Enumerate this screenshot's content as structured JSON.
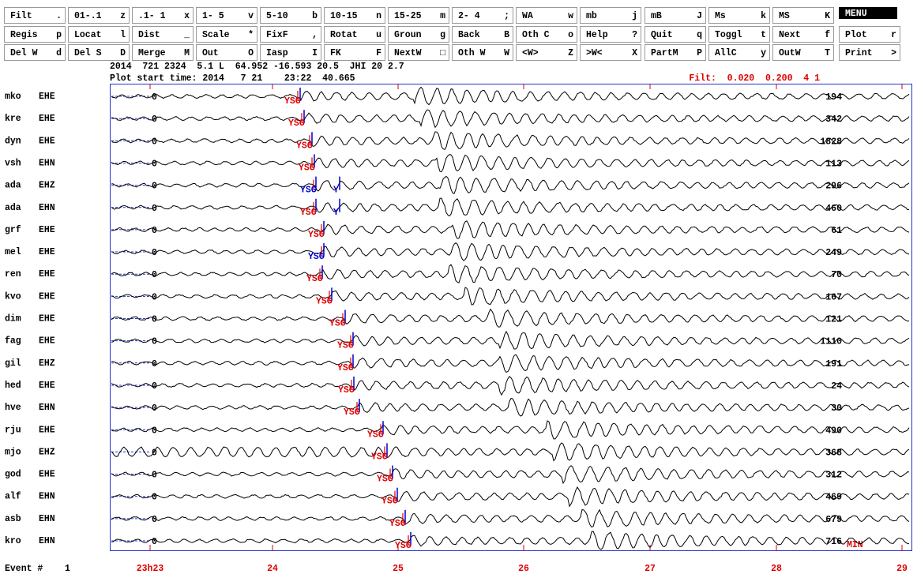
{
  "menu": {
    "rows": [
      [
        {
          "label": "Filt",
          "key": "."
        },
        {
          "label": "01-.1",
          "key": "z"
        },
        {
          "label": ".1- 1",
          "key": "x"
        },
        {
          "label": "1- 5",
          "key": "v"
        },
        {
          "label": "5-10",
          "key": "b"
        },
        {
          "label": "10-15",
          "key": "n"
        },
        {
          "label": "15-25",
          "key": "m"
        },
        {
          "label": "2- 4",
          "key": ";"
        },
        {
          "label": "WA",
          "key": "w"
        },
        {
          "label": "mb",
          "key": "j"
        },
        {
          "label": "mB",
          "key": "J"
        },
        {
          "label": "Ms",
          "key": "k"
        },
        {
          "label": "MS",
          "key": "K"
        },
        {
          "label": "MENU"
        }
      ],
      [
        {
          "label": "Regis",
          "key": "p"
        },
        {
          "label": "Locat",
          "key": "l"
        },
        {
          "label": "Dist",
          "key": "_"
        },
        {
          "label": "Scale",
          "key": "*"
        },
        {
          "label": "FixF",
          "key": ","
        },
        {
          "label": "Rotat",
          "key": "u"
        },
        {
          "label": "Groun",
          "key": "g"
        },
        {
          "label": "Back",
          "key": "B"
        },
        {
          "label": "Oth C",
          "key": "o"
        },
        {
          "label": "Help",
          "key": "?"
        },
        {
          "label": "Quit",
          "key": "q"
        },
        {
          "label": "Toggl",
          "key": "t"
        },
        {
          "label": "Next",
          "key": "f"
        },
        {
          "label": "Plot",
          "key": "r"
        }
      ],
      [
        {
          "label": "Del W",
          "key": "d"
        },
        {
          "label": "Del S",
          "key": "D"
        },
        {
          "label": "Merge",
          "key": "M"
        },
        {
          "label": "Out",
          "key": "O"
        },
        {
          "label": "Iasp",
          "key": "I"
        },
        {
          "label": "FK",
          "key": "F"
        },
        {
          "label": "NextW",
          "key": "□"
        },
        {
          "label": "Oth W",
          "key": "W"
        },
        {
          "label": "<W>",
          "key": "Z"
        },
        {
          "label": ">W<",
          "key": "X"
        },
        {
          "label": "PartM",
          "key": "P"
        },
        {
          "label": "AllC",
          "key": "y"
        },
        {
          "label": "OutW",
          "key": "T"
        },
        {
          "label": "Print",
          "key": ">"
        }
      ]
    ]
  },
  "header": {
    "event_line": "2014  721 2324  5.1 L  64.952 -16.593 20.5  JHI 20 2.7",
    "start_line": "Plot start time: 2014   7 21    23:22  40.665",
    "filter": "Filt:  0.020  0.200  4 1"
  },
  "traces": [
    {
      "station": "mko",
      "component": "EHE",
      "zero": "0",
      "max": "194",
      "picks": [
        "YSG"
      ]
    },
    {
      "station": "kre",
      "component": "EHE",
      "zero": "0",
      "max": "342",
      "picks": [
        "YSG"
      ]
    },
    {
      "station": "dyn",
      "component": "EHE",
      "zero": "0",
      "max": "1828",
      "picks": [
        "YSG"
      ]
    },
    {
      "station": "vsh",
      "component": "EHN",
      "zero": "0",
      "max": "113",
      "picks": [
        "YSG"
      ]
    },
    {
      "station": "ada",
      "component": "EHZ",
      "zero": "0",
      "max": "296",
      "picks": [
        "YSG",
        "Y"
      ]
    },
    {
      "station": "ada",
      "component": "EHN",
      "zero": "0",
      "max": "460",
      "picks": [
        "YSG",
        "Y"
      ]
    },
    {
      "station": "grf",
      "component": "EHE",
      "zero": "0",
      "max": "61",
      "picks": [
        "YSG"
      ]
    },
    {
      "station": "mel",
      "component": "EHE",
      "zero": "0",
      "max": "249",
      "picks": [
        "YSG"
      ]
    },
    {
      "station": "ren",
      "component": "EHE",
      "zero": "0",
      "max": "70",
      "picks": [
        "YSG"
      ]
    },
    {
      "station": "kvo",
      "component": "EHE",
      "zero": "0",
      "max": "167",
      "picks": [
        "YSG"
      ]
    },
    {
      "station": "dim",
      "component": "EHE",
      "zero": "0",
      "max": "121",
      "picks": [
        "YSG"
      ]
    },
    {
      "station": "fag",
      "component": "EHE",
      "zero": "0",
      "max": "1110",
      "picks": [
        "YSG"
      ]
    },
    {
      "station": "gil",
      "component": "EHZ",
      "zero": "0",
      "max": "191",
      "picks": [
        "YSG"
      ]
    },
    {
      "station": "hed",
      "component": "EHE",
      "zero": "0",
      "max": "24",
      "picks": [
        "YSG"
      ]
    },
    {
      "station": "hve",
      "component": "EHN",
      "zero": "0",
      "max": "30",
      "picks": [
        "YSG"
      ]
    },
    {
      "station": "rju",
      "component": "EHE",
      "zero": "0",
      "max": "490",
      "picks": [
        "YSG"
      ]
    },
    {
      "station": "mjo",
      "component": "EHZ",
      "zero": "0",
      "max": "368",
      "picks": [
        "YSG"
      ]
    },
    {
      "station": "god",
      "component": "EHE",
      "zero": "0",
      "max": "312",
      "picks": [
        "YSG"
      ]
    },
    {
      "station": "alf",
      "component": "EHN",
      "zero": "0",
      "max": "469",
      "picks": [
        "YSG"
      ]
    },
    {
      "station": "asb",
      "component": "EHN",
      "zero": "0",
      "max": "679",
      "picks": [
        "YSG"
      ]
    },
    {
      "station": "kro",
      "component": "EHN",
      "zero": "0",
      "max": "716",
      "picks": [
        "YSG"
      ]
    }
  ],
  "time_axis": {
    "labels": [
      "23h23",
      "24",
      "25",
      "26",
      "27",
      "28",
      "29"
    ]
  },
  "min_label": "MIN",
  "footer": {
    "label": "Event #",
    "number": "1"
  }
}
